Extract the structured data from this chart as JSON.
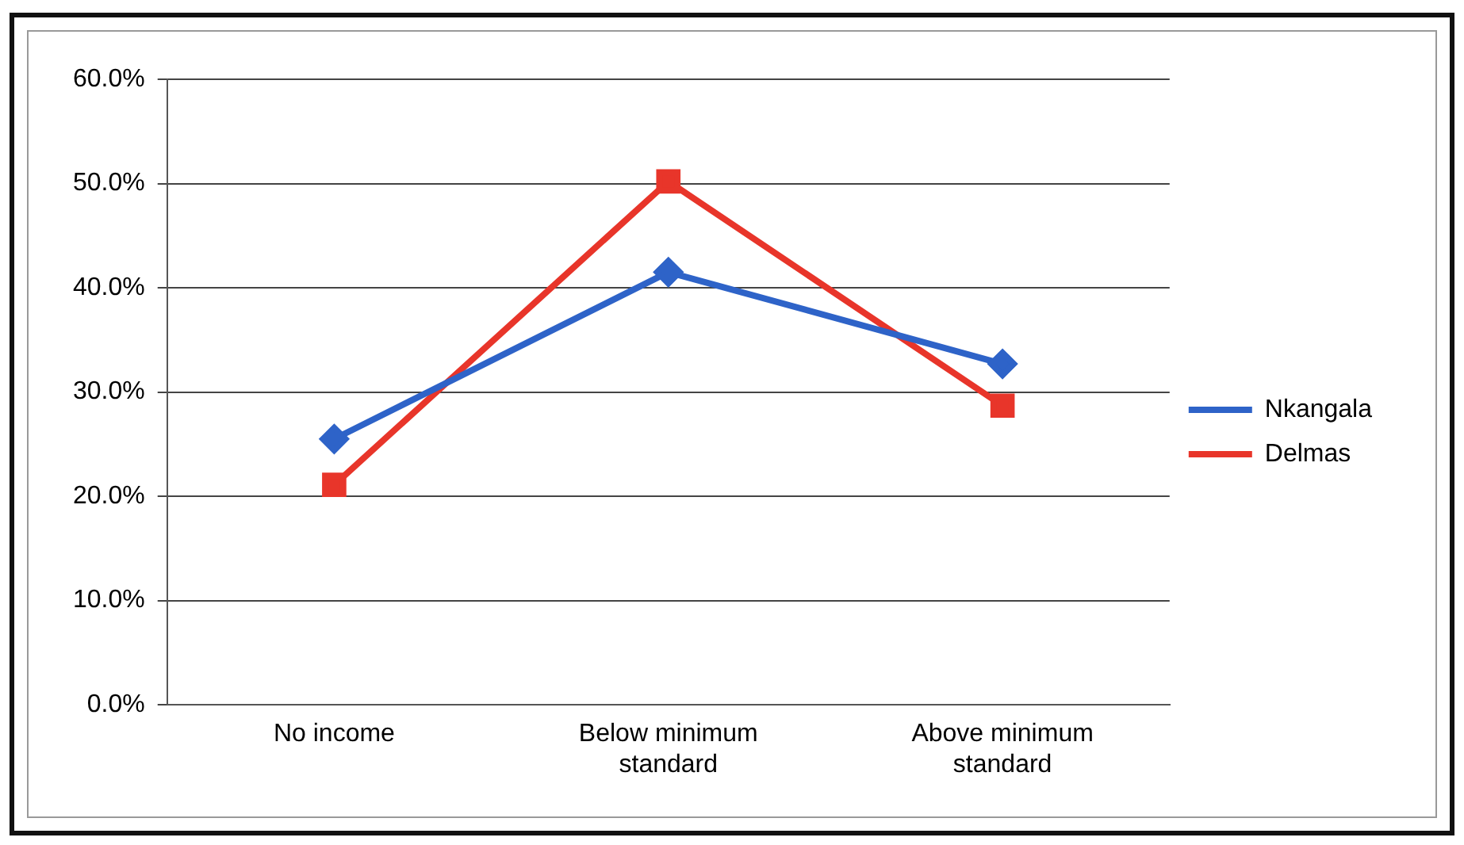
{
  "chart_data": {
    "type": "line",
    "categories": [
      "No income",
      "Below minimum standard",
      "Above minimum standard"
    ],
    "series": [
      {
        "name": "Nkangala",
        "color": "#2e63c8",
        "marker": "diamond",
        "values": [
          25.5,
          41.5,
          32.7
        ]
      },
      {
        "name": "Delmas",
        "color": "#e8352a",
        "marker": "square",
        "values": [
          21.1,
          50.2,
          28.7
        ]
      }
    ],
    "ylim": [
      0,
      60
    ],
    "yticks": [
      {
        "value": 0,
        "label": "0.0%"
      },
      {
        "value": 10,
        "label": "10.0%"
      },
      {
        "value": 20,
        "label": "20.0%"
      },
      {
        "value": 30,
        "label": "30.0%"
      },
      {
        "value": 40,
        "label": "40.0%"
      },
      {
        "value": 50,
        "label": "50.0%"
      },
      {
        "value": 60,
        "label": "60.0%"
      }
    ],
    "grid": "y",
    "legend": "right",
    "line_style": "solid"
  }
}
